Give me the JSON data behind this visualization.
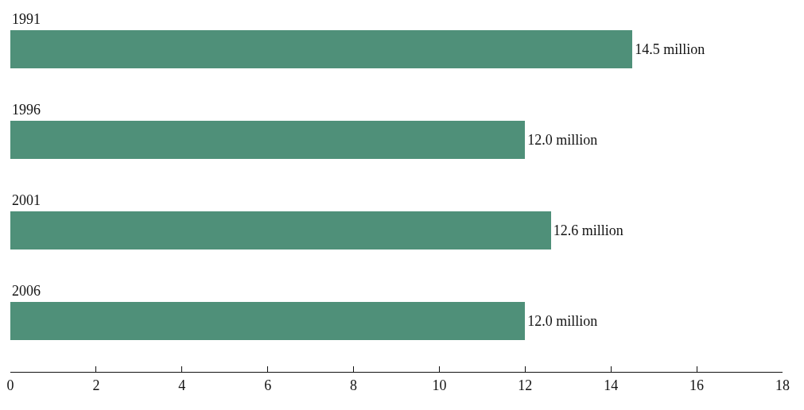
{
  "chart_data": {
    "type": "bar",
    "orientation": "horizontal",
    "categories": [
      "1991",
      "1996",
      "2001",
      "2006"
    ],
    "values": [
      14.5,
      12.0,
      12.6,
      12.0
    ],
    "value_labels": [
      "14.5 million",
      "12.0 million",
      "12.6 million",
      "12.0 million"
    ],
    "color": "#4f9079",
    "xlim": [
      0,
      18
    ],
    "xticks": [
      0,
      2,
      4,
      6,
      8,
      10,
      12,
      14,
      16,
      18
    ],
    "grid": false,
    "legend": false
  }
}
